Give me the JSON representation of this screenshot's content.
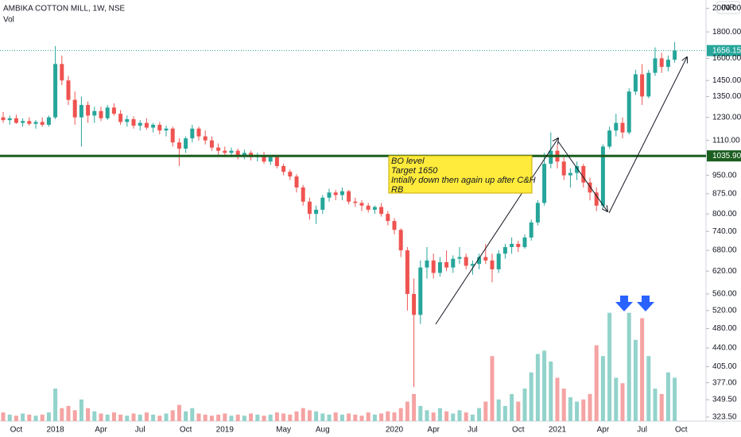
{
  "chart_data": {
    "type": "candlestick",
    "title": "AMBIKA COTTON MILL, 1W, NSE",
    "volume_label": "Vol",
    "currency": "INR",
    "log_scale": true,
    "up_color": "#26a69a",
    "down_color": "#ef5350",
    "volume_up_color": "#92d3cb",
    "volume_down_color": "#f5a3a3",
    "ylim": [
      296,
      2075
    ],
    "yticks": [
      {
        "value": 323.5,
        "label": "323.50"
      },
      {
        "value": 349.5,
        "label": "349.50"
      },
      {
        "value": 377,
        "label": "377.00"
      },
      {
        "value": 405,
        "label": "405.00"
      },
      {
        "value": 440,
        "label": "440.00"
      },
      {
        "value": 480,
        "label": "480.00"
      },
      {
        "value": 520,
        "label": "520.00"
      },
      {
        "value": 560,
        "label": "560.00"
      },
      {
        "value": 620,
        "label": "620.00"
      },
      {
        "value": 680,
        "label": "680.00"
      },
      {
        "value": 740,
        "label": "740.00"
      },
      {
        "value": 800,
        "label": "800.00"
      },
      {
        "value": 875,
        "label": "875.00"
      },
      {
        "value": 950,
        "label": "950.00"
      },
      {
        "value": 1110,
        "label": "1110.00"
      },
      {
        "value": 1230,
        "label": "1230.00"
      },
      {
        "value": 1350,
        "label": "1350.00"
      },
      {
        "value": 1450,
        "label": "1450.00"
      },
      {
        "value": 1600,
        "label": "1600.00"
      },
      {
        "value": 1800,
        "label": "1800.00"
      },
      {
        "value": 2000,
        "label": "2000.00"
      }
    ],
    "volume_ylim": [
      0,
      110
    ],
    "categories": [
      null,
      null,
      "Oct",
      null,
      null,
      null,
      null,
      null,
      "2018",
      null,
      null,
      null,
      null,
      null,
      null,
      "Apr",
      null,
      null,
      null,
      null,
      null,
      "Jul",
      null,
      null,
      null,
      null,
      null,
      null,
      "Oct",
      null,
      null,
      null,
      null,
      null,
      "2019",
      null,
      null,
      null,
      null,
      null,
      null,
      null,
      null,
      "May",
      null,
      null,
      null,
      null,
      null,
      "Aug",
      null,
      null,
      null,
      null,
      null,
      null,
      null,
      null,
      null,
      null,
      "2020",
      null,
      null,
      null,
      null,
      null,
      "Apr",
      null,
      null,
      null,
      null,
      null,
      "Jul",
      null,
      null,
      null,
      null,
      null,
      null,
      "Oct",
      null,
      null,
      null,
      null,
      null,
      "2021",
      null,
      null,
      null,
      null,
      null,
      null,
      "Apr",
      null,
      null,
      null,
      null,
      null,
      "Jul",
      null,
      null,
      null,
      null,
      null,
      "Oct"
    ],
    "ohlc": [
      [
        1230,
        1260,
        1200,
        1215
      ],
      [
        1215,
        1240,
        1190,
        1225
      ],
      [
        1225,
        1245,
        1195,
        1200
      ],
      [
        1200,
        1225,
        1180,
        1210
      ],
      [
        1210,
        1230,
        1185,
        1195
      ],
      [
        1195,
        1215,
        1170,
        1205
      ],
      [
        1205,
        1230,
        1180,
        1190
      ],
      [
        1190,
        1240,
        1180,
        1230
      ],
      [
        1230,
        1690,
        1220,
        1560
      ],
      [
        1560,
        1620,
        1420,
        1450
      ],
      [
        1450,
        1480,
        1300,
        1330
      ],
      [
        1330,
        1380,
        1190,
        1230
      ],
      [
        1230,
        1350,
        1080,
        1300
      ],
      [
        1300,
        1320,
        1200,
        1240
      ],
      [
        1240,
        1290,
        1200,
        1265
      ],
      [
        1265,
        1290,
        1210,
        1225
      ],
      [
        1225,
        1300,
        1215,
        1285
      ],
      [
        1285,
        1310,
        1240,
        1250
      ],
      [
        1250,
        1270,
        1190,
        1205
      ],
      [
        1205,
        1240,
        1180,
        1220
      ],
      [
        1220,
        1235,
        1170,
        1185
      ],
      [
        1185,
        1215,
        1160,
        1200
      ],
      [
        1200,
        1225,
        1165,
        1175
      ],
      [
        1175,
        1200,
        1150,
        1190
      ],
      [
        1190,
        1205,
        1140,
        1160
      ],
      [
        1160,
        1185,
        1130,
        1170
      ],
      [
        1170,
        1180,
        1080,
        1100
      ],
      [
        1100,
        1120,
        990,
        1070
      ],
      [
        1070,
        1130,
        1050,
        1120
      ],
      [
        1120,
        1190,
        1100,
        1170
      ],
      [
        1170,
        1180,
        1110,
        1130
      ],
      [
        1130,
        1160,
        1090,
        1110
      ],
      [
        1110,
        1130,
        1060,
        1075
      ],
      [
        1075,
        1095,
        1040,
        1060
      ],
      [
        1060,
        1080,
        1030,
        1050
      ],
      [
        1050,
        1075,
        1030,
        1060
      ],
      [
        1060,
        1070,
        1020,
        1040
      ],
      [
        1040,
        1065,
        1020,
        1050
      ],
      [
        1050,
        1060,
        1015,
        1030
      ],
      [
        1030,
        1050,
        1010,
        1040
      ],
      [
        1040,
        1055,
        1000,
        1010
      ],
      [
        1010,
        1040,
        995,
        1030
      ],
      [
        1030,
        1040,
        980,
        990
      ],
      [
        990,
        1000,
        950,
        965
      ],
      [
        965,
        975,
        930,
        945
      ],
      [
        945,
        955,
        880,
        900
      ],
      [
        900,
        910,
        830,
        845
      ],
      [
        845,
        860,
        780,
        800
      ],
      [
        800,
        830,
        765,
        815
      ],
      [
        815,
        870,
        800,
        860
      ],
      [
        860,
        895,
        845,
        880
      ],
      [
        880,
        890,
        850,
        870
      ],
      [
        870,
        900,
        850,
        885
      ],
      [
        885,
        890,
        835,
        845
      ],
      [
        845,
        860,
        825,
        840
      ],
      [
        840,
        850,
        810,
        830
      ],
      [
        830,
        840,
        805,
        815
      ],
      [
        815,
        830,
        800,
        825
      ],
      [
        825,
        840,
        790,
        800
      ],
      [
        800,
        810,
        760,
        775
      ],
      [
        775,
        785,
        730,
        745
      ],
      [
        745,
        750,
        660,
        680
      ],
      [
        680,
        690,
        520,
        560
      ],
      [
        560,
        600,
        370,
        510
      ],
      [
        510,
        650,
        490,
        630
      ],
      [
        630,
        690,
        600,
        650
      ],
      [
        650,
        670,
        600,
        615
      ],
      [
        615,
        660,
        605,
        645
      ],
      [
        645,
        680,
        620,
        630
      ],
      [
        630,
        665,
        615,
        655
      ],
      [
        655,
        690,
        640,
        660
      ],
      [
        660,
        670,
        625,
        635
      ],
      [
        635,
        650,
        610,
        640
      ],
      [
        640,
        670,
        625,
        660
      ],
      [
        660,
        700,
        640,
        650
      ],
      [
        650,
        670,
        590,
        625
      ],
      [
        625,
        680,
        615,
        670
      ],
      [
        670,
        700,
        655,
        690
      ],
      [
        690,
        720,
        670,
        700
      ],
      [
        700,
        710,
        675,
        690
      ],
      [
        690,
        730,
        685,
        720
      ],
      [
        720,
        780,
        710,
        770
      ],
      [
        770,
        850,
        760,
        840
      ],
      [
        840,
        1050,
        830,
        1000
      ],
      [
        1000,
        1150,
        980,
        1060
      ],
      [
        1060,
        1090,
        980,
        1010
      ],
      [
        1010,
        1030,
        930,
        950
      ],
      [
        950,
        980,
        900,
        960
      ],
      [
        960,
        1010,
        930,
        990
      ],
      [
        990,
        1000,
        900,
        920
      ],
      [
        920,
        940,
        850,
        880
      ],
      [
        880,
        900,
        810,
        830
      ],
      [
        830,
        1090,
        820,
        1080
      ],
      [
        1080,
        1180,
        1070,
        1160
      ],
      [
        1160,
        1250,
        1130,
        1200
      ],
      [
        1200,
        1230,
        1120,
        1150
      ],
      [
        1150,
        1400,
        1140,
        1380
      ],
      [
        1380,
        1520,
        1360,
        1490
      ],
      [
        1490,
        1560,
        1300,
        1350
      ],
      [
        1350,
        1520,
        1340,
        1500
      ],
      [
        1500,
        1680,
        1480,
        1600
      ],
      [
        1600,
        1640,
        1500,
        1540
      ],
      [
        1540,
        1620,
        1510,
        1590
      ],
      [
        1590,
        1720,
        1570,
        1656.15
      ],
      null
    ],
    "volume": [
      8,
      6,
      5,
      7,
      6,
      5,
      6,
      8,
      30,
      12,
      14,
      10,
      20,
      12,
      9,
      7,
      6,
      8,
      6,
      5,
      7,
      6,
      8,
      6,
      5,
      7,
      10,
      15,
      9,
      12,
      7,
      6,
      5,
      6,
      7,
      5,
      6,
      5,
      7,
      6,
      5,
      6,
      8,
      7,
      6,
      9,
      12,
      10,
      9,
      7,
      6,
      8,
      6,
      7,
      6,
      5,
      8,
      6,
      7,
      9,
      8,
      12,
      18,
      25,
      14,
      10,
      8,
      12,
      9,
      7,
      10,
      8,
      6,
      12,
      18,
      60,
      20,
      14,
      25,
      18,
      30,
      45,
      62,
      65,
      55,
      40,
      30,
      22,
      18,
      20,
      25,
      70,
      60,
      100,
      40,
      35,
      100,
      75,
      95,
      60,
      30,
      25,
      45,
      40,
      null
    ],
    "levels": [
      {
        "value": 1035.9,
        "label": "1035.90",
        "color": "#1b5e20"
      }
    ],
    "last_price": {
      "value": 1656.15,
      "label": "1656.15"
    },
    "annotation": [
      "BO level",
      "Target 1650",
      "Intially down then again up after C&H",
      "RB"
    ]
  }
}
